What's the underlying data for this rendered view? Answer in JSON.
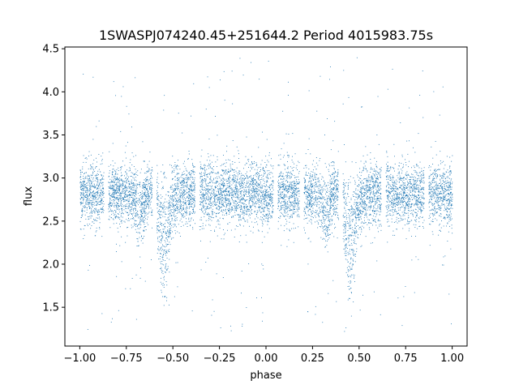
{
  "chart_data": {
    "type": "scatter",
    "title": "1SWASPJ074240.45+251644.2 Period 4015983.75s",
    "xlabel": "phase",
    "ylabel": "flux",
    "xlim": [
      -1.08,
      1.08
    ],
    "ylim": [
      1.05,
      4.52
    ],
    "xticks": [
      -1.0,
      -0.75,
      -0.5,
      -0.25,
      0.0,
      0.25,
      0.5,
      0.75,
      1.0
    ],
    "xtick_labels": [
      "−1.00",
      "−0.75",
      "−0.50",
      "−0.25",
      "0.00",
      "0.25",
      "0.50",
      "0.75",
      "1.00"
    ],
    "yticks": [
      1.5,
      2.0,
      2.5,
      3.0,
      3.5,
      4.0,
      4.5
    ],
    "ytick_labels": [
      "1.5",
      "2.0",
      "2.5",
      "3.0",
      "3.5",
      "4.0",
      "4.5"
    ],
    "grid": false,
    "legend": "none",
    "marker_color": "#1f77b4",
    "series": [
      {
        "description_of_distribution": "phase-folded light curve, dense band between flux 2.5 and 3.1 with dips near phase -0.55 and 0.45",
        "band_center": 2.82,
        "band_halfwidth": 0.3,
        "primary_dip_phases": [
          -0.55,
          0.45
        ],
        "primary_dip_min_flux": 1.7,
        "secondary_dip_phases": [
          -0.68,
          0.32
        ],
        "secondary_dip_min_flux": 2.3,
        "data_gaps_phases": [
          -0.86,
          -0.6,
          -0.37,
          0.05,
          0.19,
          0.4,
          0.63,
          0.86
        ],
        "outlier_flux_range": [
          1.2,
          4.4
        ],
        "x_range": [
          -1.0,
          1.0
        ]
      }
    ]
  }
}
